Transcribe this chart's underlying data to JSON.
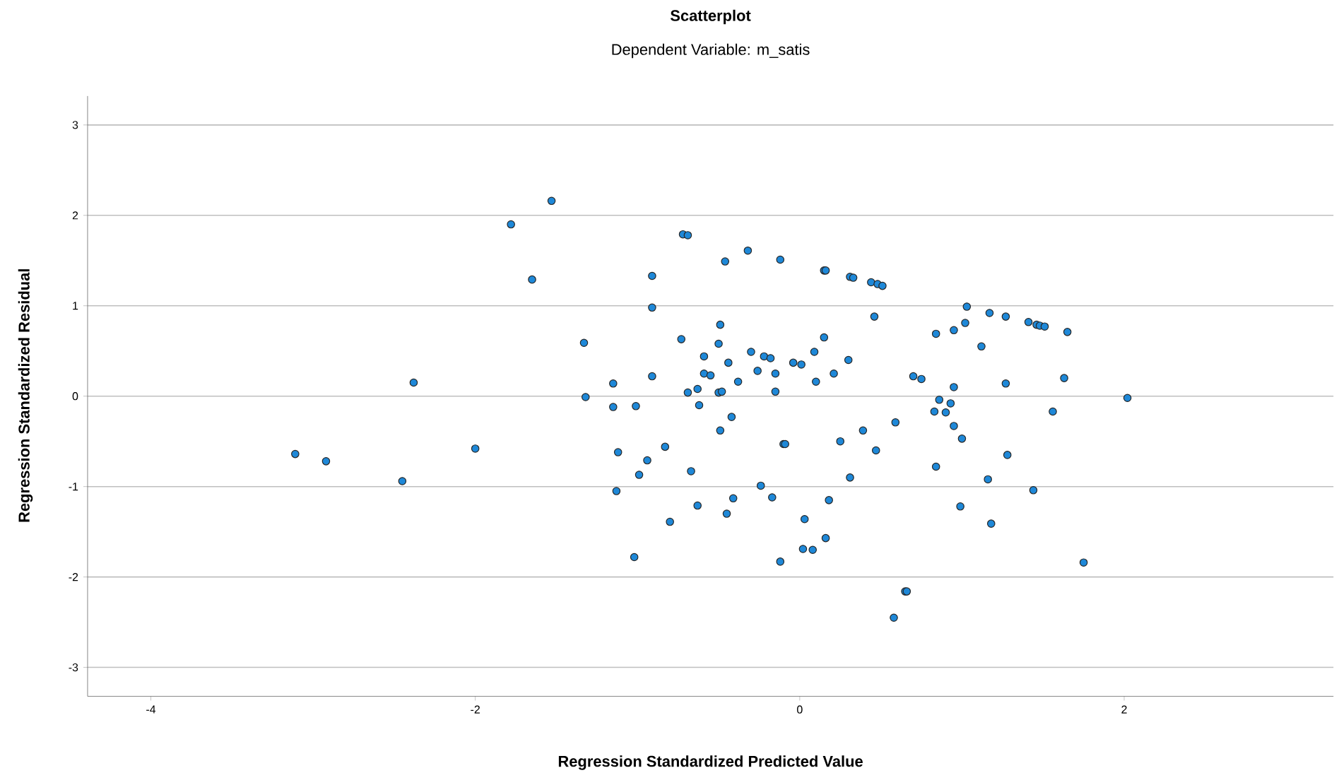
{
  "chart_data": {
    "type": "scatter",
    "title": "Scatterplot",
    "subtitle": "Dependent Variable: m_satis",
    "xlabel": "Regression Standardized Predicted Value",
    "ylabel": "Regression Standardized Residual",
    "xlim": [
      -4.39,
      3.29
    ],
    "ylim": [
      -3.32,
      3.32
    ],
    "xticks": [
      -4,
      -2,
      0,
      2
    ],
    "yticks": [
      -3,
      -2,
      -1,
      0,
      1,
      2,
      3
    ],
    "grid": "y",
    "marker": "circle",
    "series": [
      {
        "color": "#1e88d8",
        "x": [
          -1.53,
          -1.78,
          -1.65,
          -0.72,
          -0.69,
          -0.32,
          -0.46,
          -0.12,
          0.15,
          0.16,
          0.31,
          0.33,
          0.44,
          0.48,
          0.51,
          -0.91,
          -0.91,
          0.46,
          1.03,
          1.17,
          1.27,
          1.41,
          1.46,
          1.48,
          1.51,
          1.65,
          1.02,
          0.95,
          0.84,
          1.12,
          -1.33,
          -0.73,
          -0.49,
          -0.5,
          -0.59,
          -0.44,
          -0.3,
          -0.22,
          -0.18,
          -0.26,
          -0.15,
          -0.04,
          0.01,
          0.09,
          0.15,
          0.3,
          0.21,
          0.1,
          -0.15,
          -0.38,
          -0.59,
          -0.55,
          -0.63,
          -0.69,
          -0.5,
          -0.48,
          -0.91,
          -1.15,
          -1.32,
          -2.38,
          -1.15,
          -1.01,
          -0.62,
          -0.42,
          -0.49,
          0.7,
          0.75,
          0.95,
          1.27,
          1.63,
          2.02,
          0.86,
          0.93,
          0.83,
          0.9,
          1.56,
          0.59,
          0.95,
          1.0,
          0.39,
          0.25,
          0.47,
          -0.1,
          -0.09,
          -0.83,
          -1.12,
          -0.94,
          -0.99,
          -0.67,
          0.84,
          1.28,
          0.31,
          -0.24,
          1.16,
          1.44,
          -1.13,
          -0.41,
          -0.17,
          0.18,
          -0.63,
          -0.45,
          -0.8,
          0.03,
          0.99,
          1.18,
          0.16,
          0.02,
          0.08,
          -1.02,
          -0.12,
          1.75,
          0.65,
          0.66,
          0.58,
          -3.11,
          -2.92,
          -2.45,
          -2.0
        ],
        "values": [
          2.16,
          1.9,
          1.29,
          1.79,
          1.78,
          1.61,
          1.49,
          1.51,
          1.39,
          1.39,
          1.32,
          1.31,
          1.26,
          1.24,
          1.22,
          1.33,
          0.98,
          0.88,
          0.99,
          0.92,
          0.88,
          0.82,
          0.79,
          0.78,
          0.77,
          0.71,
          0.81,
          0.73,
          0.69,
          0.55,
          0.59,
          0.63,
          0.79,
          0.58,
          0.44,
          0.37,
          0.49,
          0.44,
          0.42,
          0.28,
          0.25,
          0.37,
          0.35,
          0.49,
          0.65,
          0.4,
          0.25,
          0.16,
          0.05,
          0.16,
          0.25,
          0.23,
          0.08,
          0.04,
          0.04,
          0.05,
          0.22,
          0.14,
          -0.01,
          0.15,
          -0.12,
          -0.11,
          -0.1,
          -0.23,
          -0.38,
          0.22,
          0.19,
          0.1,
          0.14,
          0.2,
          -0.02,
          -0.04,
          -0.08,
          -0.17,
          -0.18,
          -0.17,
          -0.29,
          -0.33,
          -0.47,
          -0.38,
          -0.5,
          -0.6,
          -0.53,
          -0.53,
          -0.56,
          -0.62,
          -0.71,
          -0.87,
          -0.83,
          -0.78,
          -0.65,
          -0.9,
          -0.99,
          -0.92,
          -1.04,
          -1.05,
          -1.13,
          -1.12,
          -1.15,
          -1.21,
          -1.3,
          -1.39,
          -1.36,
          -1.22,
          -1.41,
          -1.57,
          -1.69,
          -1.7,
          -1.78,
          -1.83,
          -1.84,
          -2.16,
          -2.16,
          -2.45,
          -0.64,
          -0.72,
          -0.94,
          -0.58
        ]
      }
    ]
  }
}
